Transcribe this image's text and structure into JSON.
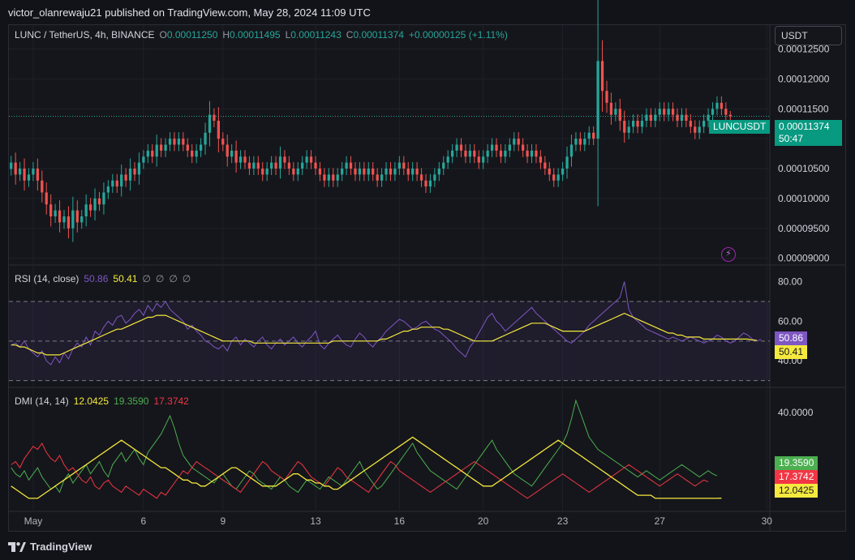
{
  "header": {
    "publish_line": "victor_olanrewaju21 published on TradingView.com, May 28, 2024 11:09 UTC"
  },
  "symbol": {
    "title": "LUNC / TetherUS, 4h, BINANCE",
    "o_label": "O",
    "o_value": "0.00011250",
    "h_label": "H",
    "h_value": "0.00011495",
    "l_label": "L",
    "l_value": "0.00011243",
    "c_label": "C",
    "c_value": "0.00011374",
    "change": "+0.00000125 (+1.11%)"
  },
  "currency": "USDT",
  "price_axis": [
    "0.00012500",
    "0.00012000",
    "0.00011500",
    "0.00011000",
    "0.00010500",
    "0.00010000",
    "0.00009500",
    "0.00009000"
  ],
  "last_price": {
    "symbol": "LUNCUSDT",
    "price": "0.00011374",
    "countdown": "50:47"
  },
  "rsi": {
    "title": "RSI (14, close)",
    "value": "50.86",
    "ma_value": "50.41",
    "extra": [
      "∅",
      "∅",
      "∅",
      "∅"
    ],
    "axis": [
      "80.00",
      "60.00",
      "40.00"
    ],
    "color": "#7e57c2",
    "ma_color": "#f5e93d"
  },
  "dmi": {
    "title": "DMI (14, 14)",
    "adx": "12.0425",
    "plus_di": "19.3590",
    "minus_di": "17.3742",
    "axis": [
      "40.0000"
    ],
    "adx_color": "#f5e93d",
    "plus_color": "#4caf50",
    "minus_color": "#f23645"
  },
  "time_axis": [
    "May",
    "6",
    "9",
    "13",
    "16",
    "20",
    "23",
    "27",
    "30"
  ],
  "footer": {
    "brand": "TradingView"
  },
  "colors": {
    "up": "#26a69a",
    "down": "#ef5350",
    "background": "#15161b",
    "grid": "#22252e"
  },
  "chart_data": [
    {
      "type": "candlestick",
      "title": "LUNC / TetherUS, 4h, BINANCE",
      "ylim": [
        8.9e-05,
        0.000129
      ],
      "x_ticks": [
        "May",
        "6",
        "9",
        "13",
        "16",
        "20",
        "23",
        "27",
        "30"
      ],
      "close": [
        0.000106,
        0.000104,
        0.000105,
        0.000103,
        0.000104,
        0.000105,
        0.000103,
        0.000101,
        9.9e-05,
        9.7e-05,
        9.8e-05,
        9.6e-05,
        9.7e-05,
        9.5e-05,
        9.8e-05,
        9.6e-05,
        9.7e-05,
        9.9e-05,
        9.8e-05,
        0.0001,
        9.9e-05,
        0.000101,
        0.000102,
        0.000103,
        0.000102,
        0.000104,
        0.000103,
        0.000105,
        0.000104,
        0.000106,
        0.000107,
        0.000108,
        0.000107,
        0.000109,
        0.000108,
        0.000109,
        0.00011,
        0.000109,
        0.00011,
        0.000109,
        0.000108,
        0.000107,
        0.000108,
        0.000109,
        0.000111,
        0.000114,
        0.000113,
        0.00011,
        0.000109,
        0.000107,
        0.000108,
        0.000106,
        0.000107,
        0.000106,
        0.000105,
        0.000106,
        0.000105,
        0.000104,
        0.000105,
        0.000106,
        0.000105,
        0.000107,
        0.000106,
        0.000105,
        0.000104,
        0.000105,
        0.000106,
        0.000107,
        0.000106,
        0.000105,
        0.000104,
        0.000103,
        0.000104,
        0.000103,
        0.000104,
        0.000105,
        0.000106,
        0.000105,
        0.000104,
        0.000105,
        0.000104,
        0.000105,
        0.000104,
        0.000103,
        0.000104,
        0.000105,
        0.000104,
        0.000105,
        0.000106,
        0.000105,
        0.000104,
        0.000105,
        0.000104,
        0.000103,
        0.000102,
        0.000103,
        0.000104,
        0.000105,
        0.000106,
        0.000107,
        0.000108,
        0.000109,
        0.000108,
        0.000107,
        0.000108,
        0.000107,
        0.000106,
        0.000107,
        0.000108,
        0.000109,
        0.000108,
        0.000107,
        0.000108,
        0.000109,
        0.00011,
        0.000109,
        0.000108,
        0.000107,
        0.000108,
        0.000107,
        0.000106,
        0.000105,
        0.000104,
        0.000103,
        0.000104,
        0.000105,
        0.000107,
        0.000109,
        0.00011,
        0.000109,
        0.00011,
        0.000111,
        0.00011,
        0.000123,
        0.000118,
        0.000116,
        0.000114,
        0.000115,
        0.000113,
        0.000111,
        0.000112,
        0.000113,
        0.000112,
        0.000113,
        0.000114,
        0.000113,
        0.000114,
        0.000115,
        0.000114,
        0.000115,
        0.000114,
        0.000113,
        0.000114,
        0.000113,
        0.000112,
        0.000111,
        0.000112,
        0.000113,
        0.000114,
        0.000115,
        0.000116,
        0.000115,
        0.000114,
        0.00011374
      ]
    },
    {
      "type": "line",
      "title": "RSI (14, close)",
      "ylim": [
        27,
        88
      ],
      "bands": [
        70,
        50,
        30
      ],
      "series": [
        {
          "name": "RSI",
          "values": [
            48,
            49,
            47,
            50,
            46,
            44,
            42,
            45,
            40,
            38,
            42,
            39,
            44,
            41,
            46,
            49,
            47,
            52,
            48,
            55,
            53,
            57,
            60,
            58,
            62,
            63,
            59,
            61,
            64,
            66,
            63,
            68,
            65,
            69,
            67,
            70,
            66,
            64,
            62,
            60,
            56,
            58,
            55,
            53,
            50,
            49,
            47,
            46,
            48,
            45,
            50,
            52,
            48,
            51,
            49,
            47,
            50,
            52,
            48,
            46,
            49,
            51,
            48,
            50,
            52,
            49,
            47,
            50,
            52,
            55,
            48,
            46,
            49,
            51,
            53,
            50,
            48,
            47,
            51,
            54,
            52,
            49,
            47,
            50,
            52,
            55,
            57,
            59,
            61,
            60,
            58,
            56,
            57,
            59,
            60,
            58,
            56,
            55,
            53,
            51,
            49,
            46,
            44,
            42,
            47,
            50,
            54,
            58,
            62,
            64,
            60,
            58,
            55,
            57,
            59,
            61,
            63,
            65,
            67,
            64,
            62,
            60,
            58,
            56,
            54,
            52,
            50,
            49,
            51,
            53,
            55,
            58,
            60,
            62,
            64,
            66,
            68,
            70,
            72,
            80,
            66,
            62,
            60,
            58,
            56,
            55,
            54,
            53,
            52,
            51,
            52,
            51,
            50,
            51,
            52,
            51,
            50,
            49,
            50,
            51,
            53,
            52,
            50,
            49,
            50,
            52,
            54,
            53,
            51,
            50,
            50.86
          ]
        },
        {
          "name": "MA",
          "values": [
            48,
            48,
            47,
            47,
            46,
            45,
            44,
            44,
            43,
            43,
            43,
            43,
            44,
            45,
            46,
            47,
            48,
            49,
            50,
            51,
            52,
            53,
            54,
            55,
            56,
            56,
            57,
            58,
            59,
            60,
            61,
            62,
            62,
            63,
            63,
            63,
            62,
            61,
            60,
            59,
            58,
            57,
            56,
            55,
            54,
            53,
            52,
            51,
            50,
            50,
            50,
            50,
            50,
            50,
            50,
            49,
            49,
            49,
            49,
            49,
            49,
            49,
            49,
            49,
            49,
            49,
            49,
            49,
            49,
            49,
            49,
            49,
            49,
            50,
            50,
            50,
            50,
            50,
            50,
            50,
            50,
            50,
            50,
            50,
            51,
            51,
            52,
            53,
            54,
            55,
            55,
            56,
            56,
            57,
            57,
            57,
            57,
            57,
            56,
            56,
            55,
            54,
            53,
            52,
            51,
            50,
            50,
            50,
            50,
            50,
            51,
            52,
            53,
            54,
            55,
            56,
            57,
            58,
            59,
            59,
            59,
            59,
            58,
            57,
            56,
            55,
            55,
            55,
            55,
            55,
            55,
            56,
            57,
            58,
            59,
            60,
            61,
            62,
            63,
            64,
            63,
            62,
            61,
            60,
            59,
            58,
            57,
            56,
            55,
            54,
            54,
            53,
            53,
            52,
            52,
            52,
            52,
            51,
            51,
            51,
            51,
            51,
            51,
            51,
            51,
            51,
            51,
            51,
            50.5,
            50.41
          ]
        }
      ]
    },
    {
      "type": "line",
      "title": "DMI (14, 14)",
      "ylim": [
        8,
        48
      ],
      "series": [
        {
          "name": "ADX",
          "values": [
            16,
            15,
            14,
            13,
            12,
            12,
            12,
            13,
            14,
            15,
            16,
            17,
            18,
            19,
            20,
            21,
            22,
            23,
            24,
            25,
            26,
            27,
            28,
            29,
            30,
            31,
            30,
            29,
            28,
            27,
            26,
            25,
            24,
            23,
            22,
            22,
            21,
            20,
            19,
            18,
            18,
            17,
            17,
            16,
            16,
            17,
            18,
            19,
            20,
            21,
            22,
            22,
            21,
            20,
            19,
            18,
            17,
            16,
            16,
            16,
            16,
            17,
            18,
            19,
            20,
            20,
            19,
            18,
            18,
            17,
            17,
            16,
            16,
            15,
            15,
            16,
            17,
            18,
            19,
            20,
            21,
            22,
            23,
            24,
            25,
            26,
            27,
            28,
            29,
            30,
            31,
            32,
            31,
            30,
            29,
            28,
            27,
            26,
            25,
            24,
            23,
            22,
            21,
            20,
            19,
            18,
            17,
            16,
            16,
            16,
            17,
            18,
            19,
            20,
            21,
            22,
            23,
            24,
            25,
            26,
            27,
            28,
            29,
            30,
            31,
            30,
            29,
            28,
            27,
            26,
            25,
            24,
            23,
            22,
            21,
            20,
            19,
            18,
            17,
            16,
            15,
            14,
            13,
            13,
            13,
            13,
            12,
            12,
            12,
            12,
            12,
            12,
            12,
            12,
            12,
            12,
            12,
            12,
            12,
            12,
            12,
            12.0425
          ]
        },
        {
          "name": "+DI",
          "values": [
            22,
            20,
            19,
            21,
            18,
            20,
            22,
            19,
            17,
            15,
            16,
            14,
            18,
            20,
            17,
            19,
            21,
            23,
            20,
            22,
            24,
            21,
            19,
            23,
            25,
            27,
            24,
            26,
            28,
            25,
            23,
            27,
            29,
            31,
            33,
            36,
            39,
            35,
            30,
            26,
            24,
            22,
            21,
            20,
            19,
            18,
            17,
            19,
            20,
            18,
            16,
            15,
            17,
            19,
            21,
            20,
            18,
            17,
            16,
            15,
            17,
            19,
            18,
            16,
            15,
            14,
            16,
            18,
            17,
            16,
            15,
            17,
            19,
            18,
            17,
            16,
            18,
            20,
            22,
            24,
            21,
            19,
            17,
            15,
            16,
            18,
            20,
            22,
            24,
            26,
            28,
            30,
            27,
            25,
            23,
            21,
            20,
            19,
            18,
            17,
            16,
            15,
            17,
            19,
            21,
            23,
            25,
            27,
            29,
            31,
            28,
            26,
            24,
            22,
            20,
            19,
            18,
            17,
            16,
            18,
            20,
            22,
            24,
            26,
            28,
            30,
            33,
            38,
            44,
            40,
            36,
            32,
            30,
            28,
            27,
            26,
            25,
            24,
            23,
            22,
            21,
            20,
            19,
            20,
            21,
            20,
            19,
            18,
            19,
            20,
            21,
            22,
            23,
            22,
            21,
            20,
            19,
            20,
            21,
            20,
            19.359
          ]
        },
        {
          "name": "-DI",
          "values": [
            23,
            24,
            22,
            25,
            27,
            29,
            28,
            30,
            27,
            25,
            24,
            26,
            23,
            21,
            22,
            20,
            18,
            17,
            19,
            16,
            15,
            17,
            18,
            16,
            15,
            14,
            16,
            15,
            14,
            13,
            15,
            14,
            13,
            12,
            14,
            13,
            15,
            17,
            19,
            21,
            20,
            22,
            24,
            23,
            22,
            21,
            20,
            19,
            18,
            17,
            16,
            15,
            14,
            16,
            18,
            20,
            22,
            24,
            23,
            21,
            20,
            19,
            18,
            20,
            22,
            24,
            23,
            21,
            19,
            18,
            17,
            16,
            18,
            20,
            22,
            21,
            19,
            18,
            17,
            16,
            15,
            14,
            16,
            18,
            20,
            22,
            24,
            23,
            21,
            20,
            19,
            18,
            17,
            16,
            15,
            14,
            15,
            16,
            17,
            18,
            19,
            20,
            21,
            22,
            23,
            24,
            23,
            22,
            21,
            20,
            19,
            18,
            17,
            16,
            15,
            14,
            13,
            12,
            13,
            14,
            15,
            16,
            17,
            18,
            19,
            20,
            19,
            18,
            17,
            16,
            15,
            14,
            15,
            16,
            17,
            18,
            19,
            20,
            21,
            22,
            23,
            22,
            21,
            20,
            19,
            18,
            17,
            16,
            17,
            18,
            19,
            20,
            19,
            18,
            17,
            16,
            17,
            18,
            17.3742
          ]
        }
      ]
    }
  ]
}
